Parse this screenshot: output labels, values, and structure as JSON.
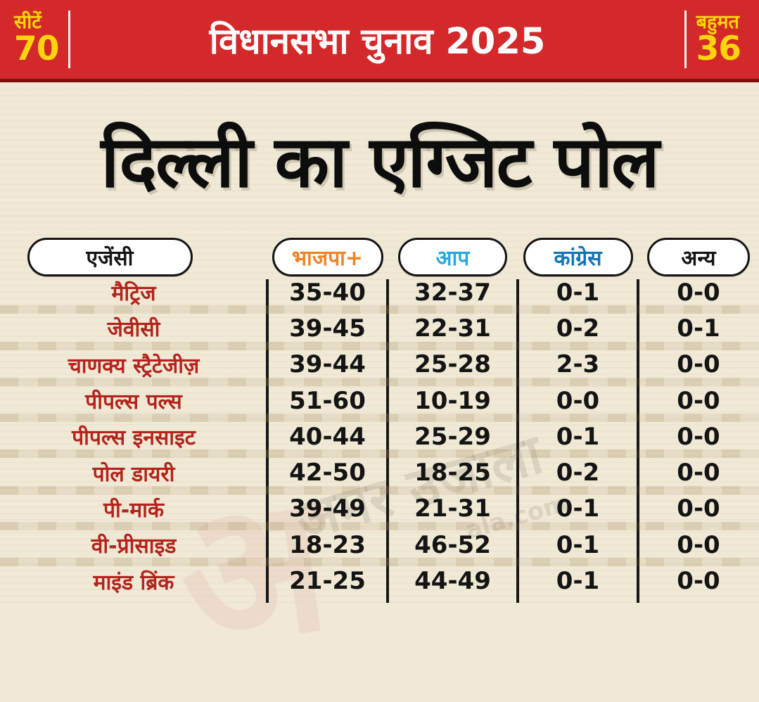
{
  "banner": {
    "left": {
      "label": "सीटें",
      "value": "70"
    },
    "title": "विधानसभा चुनाव 2025",
    "right": {
      "label": "बहुमत",
      "value": "36"
    }
  },
  "page_title": "दिल्ली का एग्जिट पोल",
  "watermark": {
    "glyph": "अ",
    "line1": "अमर उजाला",
    "line2": "ala.com"
  },
  "colors": {
    "banner_red": "#d3292a",
    "banner_dark_red": "#7d100f",
    "accent_yellow": "#ffd40a",
    "background_cream": "#f0e9d6",
    "agency_red": "#b3241d",
    "bjp_orange": "#ef8326",
    "aap_blue": "#29a8dd",
    "congress_blue": "#1474b4",
    "others_black": "#141414"
  },
  "chart_data": {
    "type": "table",
    "title": "दिल्ली का एग्जिट पोल",
    "subtitle": "विधानसभा चुनाव 2025",
    "total_seats": "70",
    "majority_mark": "36",
    "columns": [
      "एजेंसी",
      "भाजपा+",
      "आप",
      "कांग्रेस",
      "अन्य"
    ],
    "rows": [
      [
        "मैट्रिज",
        "35-40",
        "32-37",
        "0-1",
        "0-0"
      ],
      [
        "जेवीसी",
        "39-45",
        "22-31",
        "0-2",
        "0-1"
      ],
      [
        "चाणक्य स्ट्रैटेजीज़",
        "39-44",
        "25-28",
        "2-3",
        "0-0"
      ],
      [
        "पीपल्स पल्स",
        "51-60",
        "10-19",
        "0-0",
        "0-0"
      ],
      [
        "पीपल्स इनसाइट",
        "40-44",
        "25-29",
        "0-1",
        "0-0"
      ],
      [
        "पोल डायरी",
        "42-50",
        "18-25",
        "0-2",
        "0-0"
      ],
      [
        "पी-मार्क",
        "39-49",
        "21-31",
        "0-1",
        "0-0"
      ],
      [
        "वी-प्रीसाइड",
        "18-23",
        "46-52",
        "0-1",
        "0-0"
      ],
      [
        "माइंड ब्रिंक",
        "21-25",
        "44-49",
        "0-1",
        "0-0"
      ]
    ]
  }
}
